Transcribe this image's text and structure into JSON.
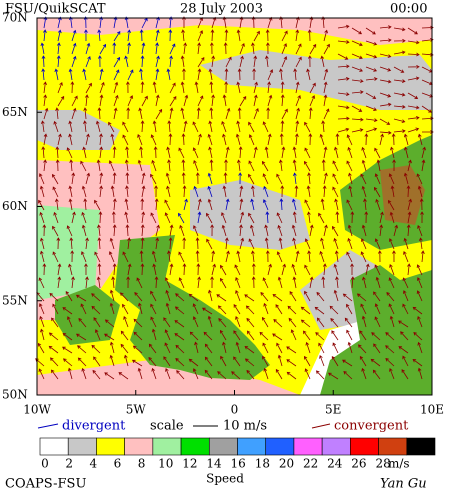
{
  "header": {
    "title": "FSU/QuikSCAT",
    "date": "28 July 2003",
    "time": "00:00"
  },
  "map": {
    "lat_range": [
      50,
      70
    ],
    "lon_range": [
      -10,
      10
    ],
    "lat_ticks": [
      {
        "value": 70,
        "label": "70N"
      },
      {
        "value": 65,
        "label": "65N"
      },
      {
        "value": 60,
        "label": "60N"
      },
      {
        "value": 55,
        "label": "55N"
      },
      {
        "value": 50,
        "label": "50N"
      }
    ],
    "lon_ticks": [
      {
        "value": -10,
        "label": "10W"
      },
      {
        "value": -5,
        "label": "5W"
      },
      0,
      {
        "value": 5,
        "label": "5E"
      },
      {
        "value": 10,
        "label": "10E"
      }
    ]
  },
  "legend": {
    "divergent": "divergent",
    "scale": "scale",
    "scale_value": "10 m/s",
    "convergent": "convergent"
  },
  "colorbar": {
    "ticks": [
      0,
      2,
      4,
      6,
      8,
      10,
      12,
      14,
      16,
      18,
      20,
      22,
      24,
      26,
      28
    ],
    "unit": "m/s",
    "title": "Speed",
    "colors": [
      "#ffffff",
      "#c8c8c8",
      "#ffff00",
      "#ffc0c0",
      "#a0f0a0",
      "#00e000",
      "#a0a0a0",
      "#40a0ff",
      "#2060ff",
      "#ff60ff",
      "#c080ff",
      "#ff0000",
      "#d04010",
      "#000000"
    ]
  },
  "footer": {
    "left": "COAPS-FSU",
    "right": "Yan Gu"
  }
}
